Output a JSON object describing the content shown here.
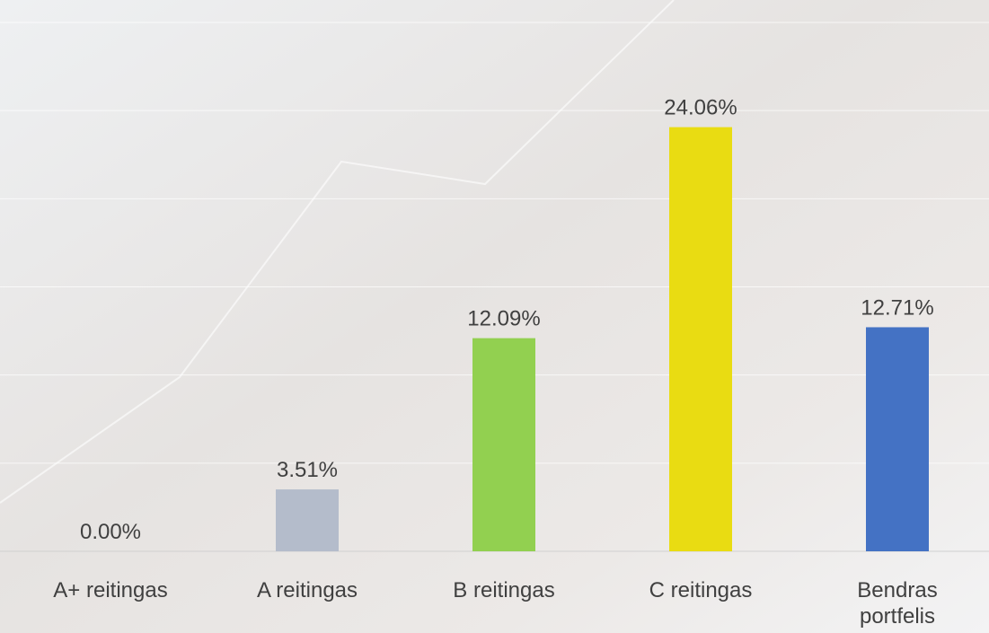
{
  "chart_data": {
    "type": "bar",
    "categories": [
      "A+ reitingas",
      "A reitingas",
      "B reitingas",
      "C reitingas",
      "Bendras portfelis"
    ],
    "values": [
      0.0,
      3.51,
      12.09,
      24.06,
      12.71
    ],
    "value_labels": [
      "0.00%",
      "3.51%",
      "12.09%",
      "24.06%",
      "12.71%"
    ],
    "colors": [
      "#b4bccb",
      "#b4bccb",
      "#92d050",
      "#e9dc12",
      "#4472c4"
    ],
    "ylim": [
      0,
      30
    ],
    "yticks": [
      0,
      5,
      10,
      15,
      20,
      25,
      30
    ],
    "grid": true
  }
}
